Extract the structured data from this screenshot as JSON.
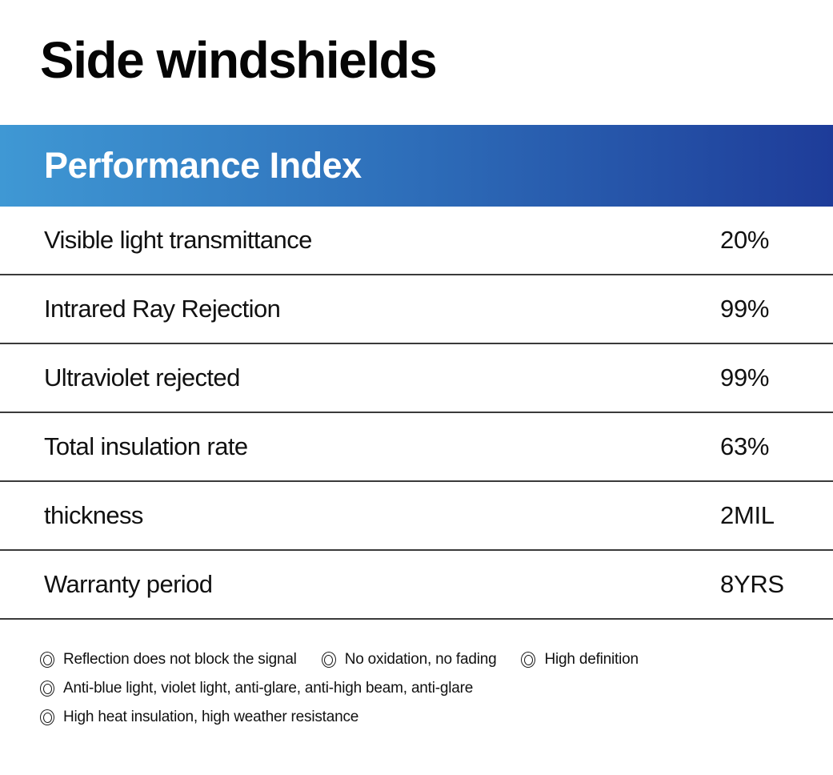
{
  "page": {
    "title": "Side windshields"
  },
  "banner": {
    "title": "Performance Index",
    "gradient_start_color": "#3F98D4",
    "gradient_end_color": "#1E3C99",
    "text_color": "#FFFFFF"
  },
  "table": {
    "divider_color": "#3A3A3A",
    "rows": [
      {
        "label": "Visible light transmittance",
        "value": "20%"
      },
      {
        "label": "Intrared Ray Rejection",
        "value": "99%"
      },
      {
        "label": "Ultraviolet rejected",
        "value": "99%"
      },
      {
        "label": "Total insulation rate",
        "value": "63%"
      },
      {
        "label": "thickness",
        "value": "2MIL"
      },
      {
        "label": "Warranty period",
        "value": "8YRS"
      }
    ]
  },
  "features": {
    "bullet_icon": "bullseye-icon",
    "line1": [
      "Reflection does not block the signal",
      "No oxidation, no fading",
      "High definition"
    ],
    "line2": [
      "Anti-blue light, violet light, anti-glare, anti-high beam, anti-glare"
    ],
    "line3": [
      "High heat insulation, high weather resistance"
    ]
  }
}
